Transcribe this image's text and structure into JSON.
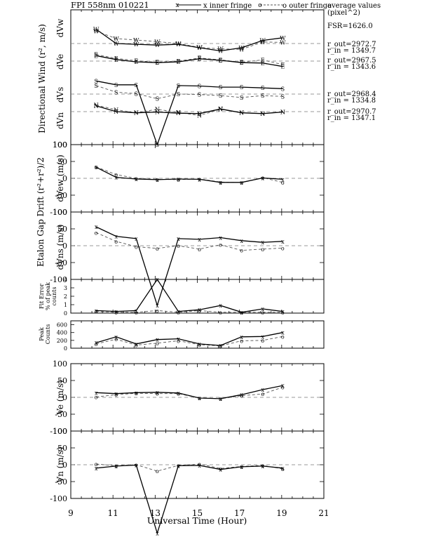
{
  "header": {
    "title": "FPI 558nm 010221",
    "legend_inner": "x inner fringe",
    "legend_outer": "o outer fringe",
    "avg_line1": "average values",
    "avg_line2": "(pixel^2)",
    "fsr": "FSR=1626.0"
  },
  "right_annotations": [
    {
      "r_out": "r_out=2972.7",
      "r_in": "r_in = 1349.7"
    },
    {
      "r_out": "r_out=2967.5",
      "r_in": "r_in = 1343.6"
    },
    {
      "r_out": "r_out=2968.4",
      "r_in": "r_in = 1334.8"
    },
    {
      "r_out": "r_out=2970.7",
      "r_in": "r_in = 1347.1"
    }
  ],
  "xaxis": {
    "label": "Universal Time (Hour)",
    "range": [
      9,
      21
    ],
    "ticks": [
      "9",
      "11",
      "13",
      "15",
      "17",
      "19",
      "21"
    ]
  },
  "colors": {
    "inner": "#000000",
    "outer": "#555555",
    "zero_line": "#777777"
  },
  "chart_data": [
    {
      "type": "line",
      "panel": "directional-wind",
      "title": "",
      "ylabel": "Directional Wind (r², m/s)",
      "channel_labels": [
        "dVw",
        "dVe",
        "dVs",
        "dVn"
      ],
      "channel_markers": [
        "W",
        "E",
        "S",
        "N"
      ],
      "y_top_label": "100",
      "x": [
        10.2,
        11.15,
        12.1,
        13.1,
        14.1,
        15.1,
        16.1,
        17.1,
        18.1,
        19.05
      ],
      "offsets": [
        62,
        87,
        134,
        159
      ],
      "series": [
        {
          "channel": "W",
          "inner": [
            37,
            0,
            -2,
            -4,
            -2,
            -11,
            -19,
            -11,
            8,
            15
          ],
          "outer": [
            32,
            13,
            9,
            5,
            0,
            -10,
            -14,
            -15,
            4,
            3
          ]
        },
        {
          "channel": "E",
          "inner": [
            14,
            4,
            -2,
            -4,
            -2,
            6,
            2,
            -4,
            -5,
            -14
          ],
          "outer": [
            17,
            7,
            1,
            -3,
            0,
            8,
            3,
            -3,
            3,
            -9
          ]
        },
        {
          "channel": "S",
          "inner": [
            34,
            24,
            24,
            -131,
            22,
            21,
            18,
            18,
            16,
            14
          ],
          "outer": [
            22,
            5,
            1,
            -12,
            0,
            -1,
            -4,
            -9,
            -4,
            -6
          ]
        },
        {
          "channel": "N",
          "inner": [
            15,
            0,
            -3,
            -1,
            -4,
            -5,
            7,
            -3,
            -5,
            -1
          ],
          "outer": [
            17,
            5,
            -3,
            6,
            -2,
            -10,
            6,
            -3,
            -5,
            -1
          ]
        }
      ]
    },
    {
      "type": "line",
      "panel": "etalon-dvew",
      "ylabel": "dVew (m/s)",
      "ylim": [
        -100,
        100
      ],
      "yticks": [
        "100",
        "50",
        "0",
        "-50",
        "-100"
      ],
      "x": [
        10.2,
        11.15,
        12.1,
        13.1,
        14.1,
        15.1,
        16.1,
        17.1,
        18.1,
        19.05
      ],
      "series": [
        {
          "name": "x inner fringe",
          "values": [
            33,
            3,
            -2,
            -4,
            -2,
            -3,
            -12,
            -12,
            1,
            -3
          ]
        },
        {
          "name": "o outer fringe",
          "values": [
            34,
            11,
            0,
            -3,
            -4,
            -2,
            -11,
            -13,
            2,
            -12
          ]
        }
      ]
    },
    {
      "type": "line",
      "panel": "etalon-dvns",
      "ylabel": "dVns (m/s)",
      "ylim": [
        -100,
        100
      ],
      "yticks": [
        "100",
        "50",
        "0",
        "-50",
        "-100"
      ],
      "x": [
        10.2,
        11.15,
        12.1,
        13.1,
        14.1,
        15.1,
        16.1,
        17.1,
        18.1,
        19.05
      ],
      "series": [
        {
          "name": "x inner fringe",
          "values": [
            56,
            28,
            21,
            -177,
            21,
            19,
            24,
            15,
            10,
            13
          ]
        },
        {
          "name": "o outer fringe",
          "values": [
            39,
            13,
            -3,
            -8,
            0,
            -10,
            3,
            -14,
            -10,
            -7
          ]
        }
      ]
    },
    {
      "type": "line",
      "panel": "fit-error",
      "ylabel_lines": [
        "Fit Error",
        "% of peak",
        "counts"
      ],
      "ylim": [
        0,
        4
      ],
      "yticks": [
        "4",
        "3",
        "2",
        "1",
        "0"
      ],
      "x": [
        10.2,
        11.15,
        12.1,
        13.1,
        14.1,
        15.1,
        16.1,
        17.1,
        18.1,
        19.05
      ],
      "series": [
        {
          "name": "x inner fringe",
          "values": [
            0.3,
            0.2,
            0.3,
            4.0,
            0.2,
            0.4,
            0.9,
            0.1,
            0.5,
            0.2
          ]
        },
        {
          "name": "o outer fringe",
          "values": [
            0.2,
            0.1,
            0.1,
            0.3,
            0.1,
            0.3,
            0.1,
            0.1,
            0.1,
            0.1
          ]
        }
      ]
    },
    {
      "type": "line",
      "panel": "peak-counts",
      "ylabel_lines": [
        "Peak",
        "Counts"
      ],
      "ylim": [
        0,
        700
      ],
      "yticks": [
        "600",
        "400",
        "200",
        "0"
      ],
      "x": [
        10.2,
        11.15,
        12.1,
        13.1,
        14.1,
        15.1,
        16.1,
        17.1,
        18.1,
        19.05
      ],
      "series": [
        {
          "name": "x inner fringe",
          "values": [
            140,
            290,
            110,
            220,
            240,
            110,
            70,
            290,
            300,
            400
          ]
        },
        {
          "name": "o outer fringe",
          "values": [
            110,
            230,
            80,
            130,
            190,
            90,
            60,
            190,
            200,
            300
          ]
        }
      ]
    },
    {
      "type": "line",
      "panel": "ve",
      "ylabel": "Ve (m/s)",
      "ylim": [
        -100,
        100
      ],
      "yticks": [
        "100",
        "50",
        "0",
        "-50",
        "-100"
      ],
      "x": [
        10.2,
        11.15,
        12.1,
        13.1,
        14.1,
        15.1,
        16.1,
        17.1,
        18.1,
        19.05
      ],
      "series": [
        {
          "name": "x inner fringe",
          "values": [
            14,
            11,
            14,
            15,
            13,
            -2,
            -4,
            8,
            23,
            35
          ]
        },
        {
          "name": "o outer fringe",
          "values": [
            1,
            8,
            12,
            11,
            11,
            -2,
            -4,
            5,
            10,
            30
          ]
        }
      ]
    },
    {
      "type": "line",
      "panel": "vn",
      "ylabel": "Vn (m/s)",
      "ylim": [
        -100,
        100
      ],
      "yticks": [
        "100",
        "50",
        "0",
        "-50",
        "-100"
      ],
      "x": [
        10.2,
        11.15,
        12.1,
        13.1,
        14.1,
        15.1,
        16.1,
        17.1,
        18.1,
        19.05
      ],
      "series": [
        {
          "name": "x inner fringe",
          "values": [
            -10,
            -4,
            -1,
            -203,
            -3,
            -2,
            -14,
            -6,
            -4,
            -10
          ]
        },
        {
          "name": "o outer fringe",
          "values": [
            2,
            -3,
            0,
            -19,
            -2,
            2,
            -11,
            -5,
            -2,
            -12
          ]
        }
      ]
    }
  ],
  "etalon_label": {
    "main": "Etalon Gap Drift (r²",
    "tail": "+r²)/2"
  }
}
